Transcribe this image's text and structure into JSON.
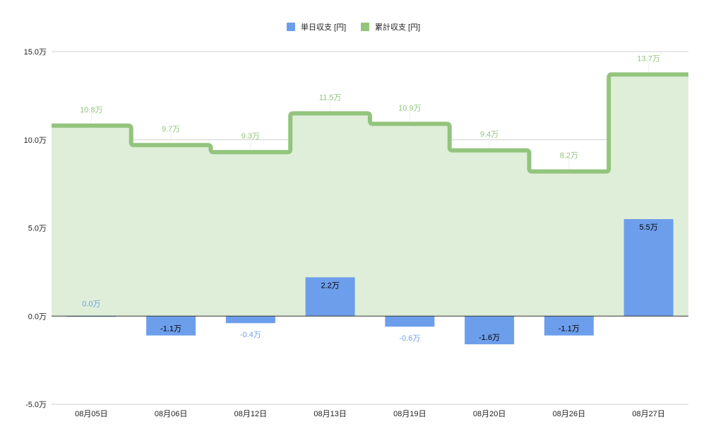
{
  "chart_data": {
    "type": "bar",
    "categories": [
      "08月05日",
      "08月06日",
      "08月12日",
      "08月13日",
      "08月19日",
      "08月20日",
      "08月26日",
      "08月27日"
    ],
    "ylim": [
      -5.0,
      15.0
    ],
    "yticks": [
      {
        "value": -5.0,
        "label": "-5.0万"
      },
      {
        "value": 0.0,
        "label": "0.0万"
      },
      {
        "value": 5.0,
        "label": "5.0万"
      },
      {
        "value": 10.0,
        "label": "10.0万"
      },
      {
        "value": 15.0,
        "label": "15.0万"
      }
    ],
    "grid": true,
    "legend_position": "top-center",
    "series": [
      {
        "name": "単日収支 [円]",
        "type": "bar",
        "color": "#6d9eeb",
        "values": [
          0.0,
          -1.1,
          -0.4,
          2.2,
          -0.6,
          -1.6,
          -1.1,
          5.5
        ],
        "labels": [
          "0.0万",
          "-1.1万",
          "-0.4万",
          "2.2万",
          "-0.6万",
          "-1.6万",
          "-1.1万",
          "5.5万"
        ]
      },
      {
        "name": "累計収支 [円]",
        "type": "stepped-area",
        "color": "#93c47d",
        "fill": "#dfeed8",
        "values": [
          10.8,
          9.7,
          9.3,
          11.5,
          10.9,
          9.4,
          8.2,
          13.7
        ],
        "labels": [
          "10.8万",
          "9.7万",
          "9.3万",
          "11.5万",
          "10.9万",
          "9.4万",
          "8.2万",
          "13.7万"
        ]
      }
    ]
  }
}
